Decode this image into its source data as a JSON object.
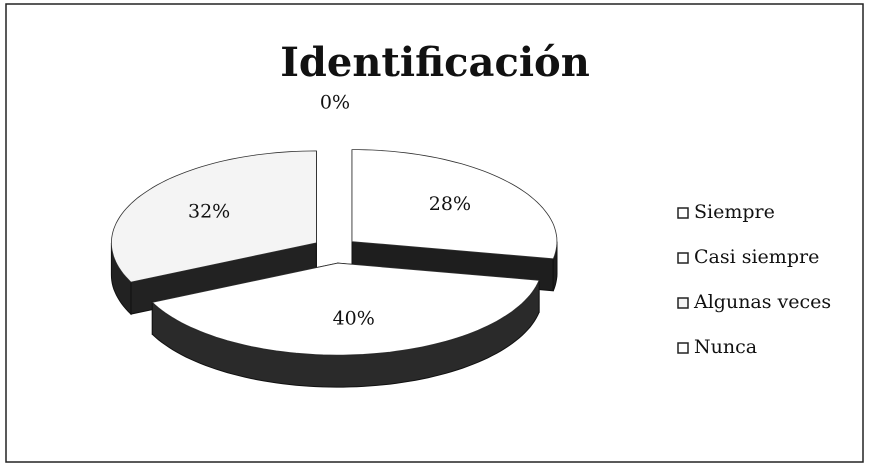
{
  "chart_data": {
    "type": "pie",
    "title": "Identificación",
    "categories": [
      "Siempre",
      "Casi siempre",
      "Algunas veces",
      "Nunca"
    ],
    "values": [
      28,
      40,
      32,
      0
    ],
    "value_labels": [
      "28%",
      "40%",
      "32%",
      "0%"
    ],
    "colors": [
      "#ffffff",
      "#ffffff",
      "#f4f4f4",
      "#ffffff"
    ],
    "legend": "right"
  }
}
